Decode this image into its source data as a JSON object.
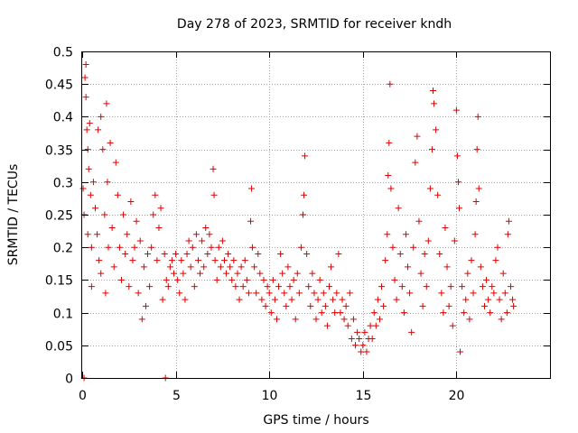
{
  "chart_data": {
    "type": "scatter",
    "title": "Day 278 of 2023, SRMTID for receiver kndh",
    "xlabel": "GPS time / hours",
    "ylabel": "SRMTID / TECUs",
    "xlim": [
      0,
      25
    ],
    "ylim": [
      0,
      0.5
    ],
    "xticks": [
      0,
      5,
      10,
      15,
      20
    ],
    "yticks": [
      0,
      0.05,
      0.1,
      0.15,
      0.2,
      0.25,
      0.3,
      0.35,
      0.4,
      0.45,
      0.5
    ],
    "ytick_labels": [
      "0",
      "0.05",
      "0.1",
      "0.15",
      "0.2",
      "0.25",
      "0.3",
      "0.35",
      "0.4",
      "0.45",
      "0.5"
    ],
    "grid": true,
    "marker": "+",
    "color": "#e00000",
    "series": [
      {
        "name": "SRMTID",
        "points": [
          [
            0.05,
            0.29
          ],
          [
            0.1,
            0.25
          ],
          [
            0.1,
            0.0
          ],
          [
            0.15,
            0.46
          ],
          [
            0.2,
            0.48
          ],
          [
            0.2,
            0.43
          ],
          [
            0.25,
            0.38
          ],
          [
            0.3,
            0.35
          ],
          [
            0.3,
            0.22
          ],
          [
            0.35,
            0.32
          ],
          [
            0.4,
            0.39
          ],
          [
            0.45,
            0.28
          ],
          [
            0.5,
            0.2
          ],
          [
            0.5,
            0.14
          ],
          [
            0.6,
            0.3
          ],
          [
            0.7,
            0.26
          ],
          [
            0.8,
            0.22
          ],
          [
            0.85,
            0.38
          ],
          [
            0.9,
            0.18
          ],
          [
            1.0,
            0.4
          ],
          [
            1.0,
            0.16
          ],
          [
            1.1,
            0.35
          ],
          [
            1.2,
            0.25
          ],
          [
            1.25,
            0.13
          ],
          [
            1.3,
            0.42
          ],
          [
            1.35,
            0.3
          ],
          [
            1.4,
            0.2
          ],
          [
            1.5,
            0.36
          ],
          [
            1.6,
            0.23
          ],
          [
            1.7,
            0.17
          ],
          [
            1.8,
            0.33
          ],
          [
            1.9,
            0.28
          ],
          [
            2.0,
            0.2
          ],
          [
            2.1,
            0.15
          ],
          [
            2.2,
            0.25
          ],
          [
            2.3,
            0.19
          ],
          [
            2.4,
            0.22
          ],
          [
            2.5,
            0.14
          ],
          [
            2.6,
            0.27
          ],
          [
            2.7,
            0.18
          ],
          [
            2.8,
            0.2
          ],
          [
            2.9,
            0.24
          ],
          [
            3.0,
            0.13
          ],
          [
            3.1,
            0.21
          ],
          [
            3.2,
            0.09
          ],
          [
            3.3,
            0.17
          ],
          [
            3.4,
            0.11
          ],
          [
            3.5,
            0.19
          ],
          [
            3.6,
            0.14
          ],
          [
            3.7,
            0.2
          ],
          [
            3.8,
            0.25
          ],
          [
            3.9,
            0.28
          ],
          [
            4.0,
            0.18
          ],
          [
            4.1,
            0.23
          ],
          [
            4.2,
            0.26
          ],
          [
            4.3,
            0.12
          ],
          [
            4.4,
            0.19
          ],
          [
            4.45,
            0.0
          ],
          [
            4.5,
            0.15
          ],
          [
            4.6,
            0.14
          ],
          [
            4.7,
            0.17
          ],
          [
            4.8,
            0.18
          ],
          [
            4.9,
            0.16
          ],
          [
            5.0,
            0.19
          ],
          [
            5.1,
            0.15
          ],
          [
            5.2,
            0.13
          ],
          [
            5.3,
            0.18
          ],
          [
            5.4,
            0.16
          ],
          [
            5.5,
            0.12
          ],
          [
            5.6,
            0.19
          ],
          [
            5.7,
            0.21
          ],
          [
            5.8,
            0.17
          ],
          [
            5.9,
            0.2
          ],
          [
            6.0,
            0.14
          ],
          [
            6.1,
            0.22
          ],
          [
            6.2,
            0.18
          ],
          [
            6.3,
            0.16
          ],
          [
            6.4,
            0.21
          ],
          [
            6.5,
            0.17
          ],
          [
            6.6,
            0.23
          ],
          [
            6.7,
            0.19
          ],
          [
            6.8,
            0.22
          ],
          [
            6.9,
            0.2
          ],
          [
            7.0,
            0.32
          ],
          [
            7.05,
            0.28
          ],
          [
            7.1,
            0.18
          ],
          [
            7.2,
            0.15
          ],
          [
            7.3,
            0.2
          ],
          [
            7.4,
            0.17
          ],
          [
            7.5,
            0.21
          ],
          [
            7.6,
            0.18
          ],
          [
            7.7,
            0.16
          ],
          [
            7.8,
            0.19
          ],
          [
            7.9,
            0.17
          ],
          [
            8.0,
            0.15
          ],
          [
            8.1,
            0.18
          ],
          [
            8.2,
            0.14
          ],
          [
            8.3,
            0.16
          ],
          [
            8.4,
            0.12
          ],
          [
            8.5,
            0.17
          ],
          [
            8.6,
            0.14
          ],
          [
            8.7,
            0.18
          ],
          [
            8.8,
            0.15
          ],
          [
            8.9,
            0.13
          ],
          [
            9.0,
            0.24
          ],
          [
            9.05,
            0.29
          ],
          [
            9.1,
            0.2
          ],
          [
            9.2,
            0.17
          ],
          [
            9.3,
            0.13
          ],
          [
            9.4,
            0.19
          ],
          [
            9.5,
            0.16
          ],
          [
            9.6,
            0.12
          ],
          [
            9.7,
            0.15
          ],
          [
            9.8,
            0.11
          ],
          [
            9.9,
            0.14
          ],
          [
            10.0,
            0.13
          ],
          [
            10.1,
            0.1
          ],
          [
            10.2,
            0.15
          ],
          [
            10.3,
            0.12
          ],
          [
            10.4,
            0.09
          ],
          [
            10.5,
            0.14
          ],
          [
            10.6,
            0.19
          ],
          [
            10.7,
            0.16
          ],
          [
            10.8,
            0.13
          ],
          [
            10.9,
            0.11
          ],
          [
            11.0,
            0.17
          ],
          [
            11.1,
            0.14
          ],
          [
            11.2,
            0.12
          ],
          [
            11.3,
            0.15
          ],
          [
            11.4,
            0.09
          ],
          [
            11.5,
            0.16
          ],
          [
            11.6,
            0.13
          ],
          [
            11.7,
            0.2
          ],
          [
            11.8,
            0.25
          ],
          [
            11.85,
            0.28
          ],
          [
            11.9,
            0.34
          ],
          [
            12.0,
            0.19
          ],
          [
            12.1,
            0.14
          ],
          [
            12.2,
            0.11
          ],
          [
            12.3,
            0.16
          ],
          [
            12.4,
            0.13
          ],
          [
            12.5,
            0.09
          ],
          [
            12.6,
            0.12
          ],
          [
            12.7,
            0.15
          ],
          [
            12.8,
            0.1
          ],
          [
            12.9,
            0.13
          ],
          [
            13.0,
            0.11
          ],
          [
            13.1,
            0.08
          ],
          [
            13.2,
            0.14
          ],
          [
            13.3,
            0.17
          ],
          [
            13.4,
            0.12
          ],
          [
            13.5,
            0.1
          ],
          [
            13.6,
            0.13
          ],
          [
            13.7,
            0.19
          ],
          [
            13.8,
            0.1
          ],
          [
            13.9,
            0.12
          ],
          [
            14.0,
            0.09
          ],
          [
            14.1,
            0.11
          ],
          [
            14.2,
            0.08
          ],
          [
            14.3,
            0.13
          ],
          [
            14.4,
            0.06
          ],
          [
            14.5,
            0.09
          ],
          [
            14.6,
            0.05
          ],
          [
            14.7,
            0.07
          ],
          [
            14.8,
            0.06
          ],
          [
            14.9,
            0.04
          ],
          [
            15.0,
            0.05
          ],
          [
            15.1,
            0.07
          ],
          [
            15.2,
            0.04
          ],
          [
            15.3,
            0.06
          ],
          [
            15.4,
            0.08
          ],
          [
            15.5,
            0.06
          ],
          [
            15.6,
            0.1
          ],
          [
            15.7,
            0.08
          ],
          [
            15.8,
            0.12
          ],
          [
            15.9,
            0.09
          ],
          [
            16.0,
            0.14
          ],
          [
            16.1,
            0.11
          ],
          [
            16.2,
            0.18
          ],
          [
            16.3,
            0.22
          ],
          [
            16.35,
            0.31
          ],
          [
            16.4,
            0.36
          ],
          [
            16.45,
            0.45
          ],
          [
            16.5,
            0.29
          ],
          [
            16.6,
            0.2
          ],
          [
            16.7,
            0.15
          ],
          [
            16.8,
            0.12
          ],
          [
            16.9,
            0.26
          ],
          [
            17.0,
            0.19
          ],
          [
            17.1,
            0.14
          ],
          [
            17.2,
            0.1
          ],
          [
            17.3,
            0.22
          ],
          [
            17.4,
            0.17
          ],
          [
            17.5,
            0.13
          ],
          [
            17.6,
            0.07
          ],
          [
            17.7,
            0.2
          ],
          [
            17.8,
            0.33
          ],
          [
            17.9,
            0.37
          ],
          [
            18.0,
            0.24
          ],
          [
            18.1,
            0.16
          ],
          [
            18.2,
            0.11
          ],
          [
            18.3,
            0.19
          ],
          [
            18.4,
            0.14
          ],
          [
            18.5,
            0.21
          ],
          [
            18.6,
            0.29
          ],
          [
            18.7,
            0.35
          ],
          [
            18.75,
            0.44
          ],
          [
            18.8,
            0.42
          ],
          [
            18.9,
            0.38
          ],
          [
            19.0,
            0.28
          ],
          [
            19.1,
            0.19
          ],
          [
            19.2,
            0.13
          ],
          [
            19.3,
            0.1
          ],
          [
            19.4,
            0.23
          ],
          [
            19.5,
            0.17
          ],
          [
            19.6,
            0.11
          ],
          [
            19.7,
            0.14
          ],
          [
            19.8,
            0.08
          ],
          [
            19.9,
            0.21
          ],
          [
            20.0,
            0.41
          ],
          [
            20.05,
            0.34
          ],
          [
            20.1,
            0.3
          ],
          [
            20.15,
            0.26
          ],
          [
            20.2,
            0.04
          ],
          [
            20.3,
            0.14
          ],
          [
            20.4,
            0.1
          ],
          [
            20.5,
            0.12
          ],
          [
            20.6,
            0.16
          ],
          [
            20.7,
            0.09
          ],
          [
            20.8,
            0.18
          ],
          [
            20.9,
            0.13
          ],
          [
            21.0,
            0.22
          ],
          [
            21.05,
            0.27
          ],
          [
            21.1,
            0.35
          ],
          [
            21.15,
            0.4
          ],
          [
            21.2,
            0.29
          ],
          [
            21.3,
            0.17
          ],
          [
            21.4,
            0.14
          ],
          [
            21.5,
            0.11
          ],
          [
            21.6,
            0.15
          ],
          [
            21.7,
            0.12
          ],
          [
            21.8,
            0.1
          ],
          [
            21.9,
            0.14
          ],
          [
            22.0,
            0.13
          ],
          [
            22.1,
            0.18
          ],
          [
            22.2,
            0.2
          ],
          [
            22.3,
            0.12
          ],
          [
            22.4,
            0.09
          ],
          [
            22.5,
            0.16
          ],
          [
            22.6,
            0.13
          ],
          [
            22.7,
            0.1
          ],
          [
            22.75,
            0.22
          ],
          [
            22.8,
            0.24
          ],
          [
            22.9,
            0.14
          ],
          [
            23.0,
            0.12
          ],
          [
            23.05,
            0.11
          ]
        ]
      }
    ]
  }
}
